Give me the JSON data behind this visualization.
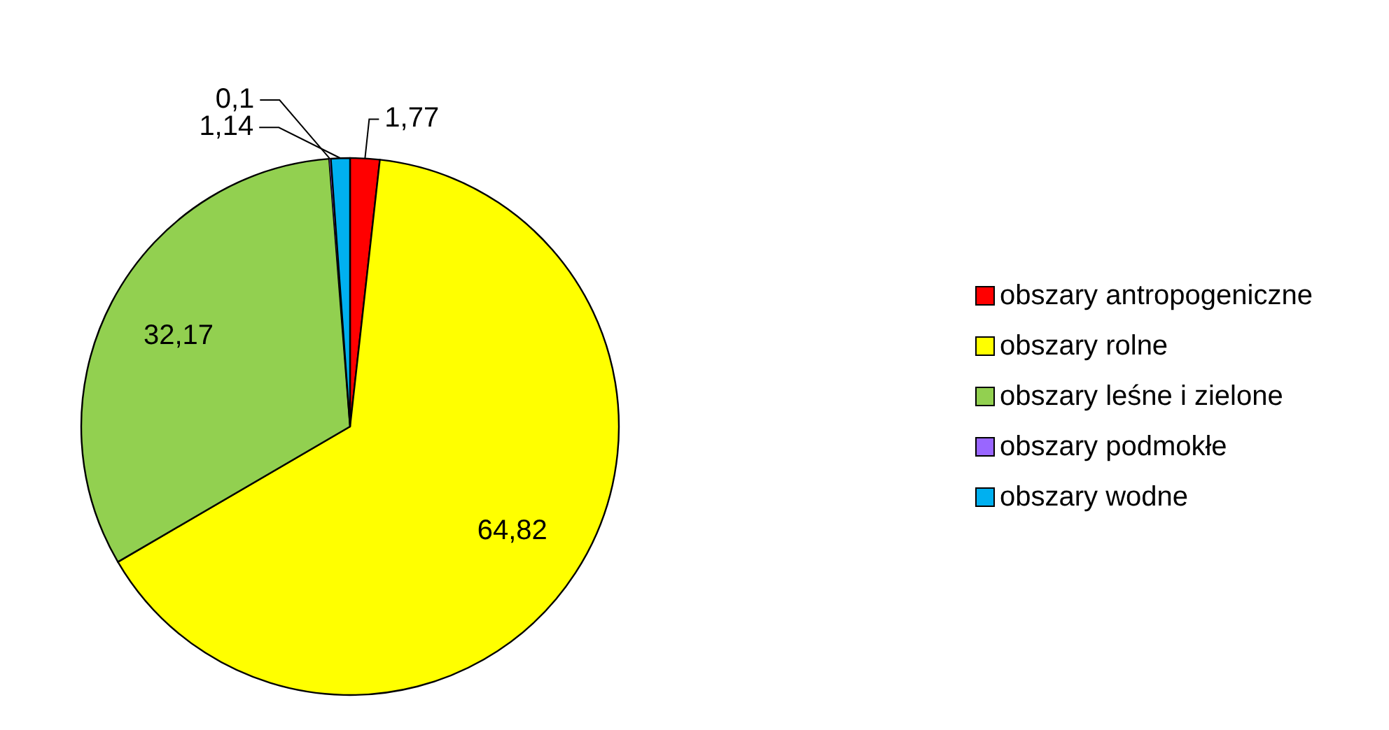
{
  "chart_data": {
    "type": "pie",
    "categories": [
      "obszary antropogeniczne",
      "obszary rolne",
      "obszary leśne i zielone",
      "obszary podmokłe",
      "obszary wodne"
    ],
    "values": [
      1.77,
      64.82,
      32.17,
      0.1,
      1.14
    ],
    "value_labels": [
      "1,77",
      "64,82",
      "32,17",
      "0,1",
      "1,14"
    ],
    "colors": [
      "#ff0000",
      "#ffff00",
      "#92d050",
      "#9966ff",
      "#00b0f0"
    ],
    "legend": "right"
  }
}
